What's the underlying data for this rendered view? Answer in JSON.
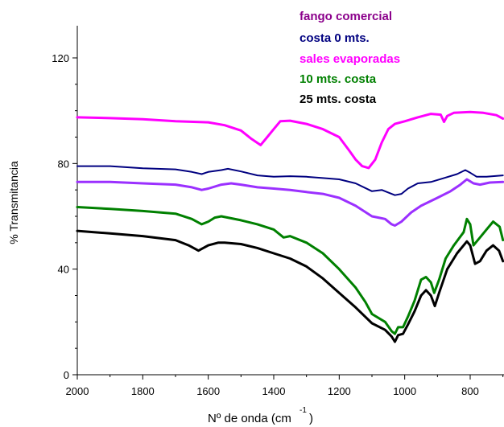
{
  "chart_data": {
    "type": "line",
    "title": "",
    "xlabel": "Nº de onda (cm",
    "xlabel_superscript": "-1",
    "xlabel_close": ")",
    "ylabel": "% Transmitancia",
    "xlim": [
      2000,
      700
    ],
    "x_reversed": true,
    "ylim": [
      0,
      120
    ],
    "x_ticks": [
      2000,
      1800,
      1600,
      1400,
      1200,
      1000,
      800
    ],
    "x_tick_labels": [
      "2000",
      "1800",
      "1600",
      "1400",
      "1200",
      "1000",
      "800"
    ],
    "y_ticks": [
      0,
      40,
      80,
      120
    ],
    "y_tick_labels": [
      "0",
      "40",
      "80",
      "120"
    ],
    "grid": false,
    "legend_position": "top-center",
    "legend": [
      {
        "label": "fango comercial",
        "color": "#8B008B"
      },
      {
        "label": "costa 0 mts.",
        "color": "#000080"
      },
      {
        "label": "sales evaporadas",
        "color": "#FF00FF"
      },
      {
        "label": "10 mts. costa",
        "color": "#008000"
      },
      {
        "label": "25 mts. costa",
        "color": "#000000"
      }
    ],
    "series": [
      {
        "name": "sales evaporadas",
        "color": "#FF00FF",
        "points": [
          [
            2000,
            97.5
          ],
          [
            1900,
            97.2
          ],
          [
            1800,
            96.8
          ],
          [
            1700,
            96.0
          ],
          [
            1600,
            95.6
          ],
          [
            1550,
            94.5
          ],
          [
            1500,
            92.5
          ],
          [
            1470,
            89.5
          ],
          [
            1440,
            87.0
          ],
          [
            1420,
            90.0
          ],
          [
            1400,
            93.0
          ],
          [
            1380,
            96.0
          ],
          [
            1350,
            96.2
          ],
          [
            1300,
            95.0
          ],
          [
            1250,
            93.0
          ],
          [
            1200,
            90.0
          ],
          [
            1170,
            85.0
          ],
          [
            1150,
            81.5
          ],
          [
            1130,
            79.0
          ],
          [
            1110,
            78.3
          ],
          [
            1090,
            81.5
          ],
          [
            1070,
            88.0
          ],
          [
            1050,
            93.0
          ],
          [
            1030,
            95.0
          ],
          [
            1000,
            96.0
          ],
          [
            960,
            97.5
          ],
          [
            920,
            98.8
          ],
          [
            890,
            98.5
          ],
          [
            880,
            95.8
          ],
          [
            870,
            98.0
          ],
          [
            850,
            99.2
          ],
          [
            800,
            99.5
          ],
          [
            760,
            99.2
          ],
          [
            720,
            98.3
          ],
          [
            700,
            97.0
          ]
        ]
      },
      {
        "name": "costa 0 mts.",
        "color": "#000080",
        "points": [
          [
            2000,
            79.0
          ],
          [
            1900,
            79.0
          ],
          [
            1800,
            78.2
          ],
          [
            1700,
            77.8
          ],
          [
            1650,
            76.8
          ],
          [
            1620,
            76.0
          ],
          [
            1600,
            76.8
          ],
          [
            1560,
            77.5
          ],
          [
            1540,
            78.0
          ],
          [
            1500,
            77.0
          ],
          [
            1450,
            75.5
          ],
          [
            1400,
            75.0
          ],
          [
            1350,
            75.2
          ],
          [
            1300,
            75.0
          ],
          [
            1250,
            74.5
          ],
          [
            1200,
            74.0
          ],
          [
            1150,
            72.5
          ],
          [
            1100,
            69.5
          ],
          [
            1070,
            70.0
          ],
          [
            1050,
            69.0
          ],
          [
            1030,
            68.0
          ],
          [
            1010,
            68.5
          ],
          [
            990,
            70.5
          ],
          [
            960,
            72.5
          ],
          [
            920,
            73.0
          ],
          [
            880,
            74.5
          ],
          [
            840,
            76.0
          ],
          [
            815,
            77.5
          ],
          [
            800,
            76.5
          ],
          [
            780,
            75.0
          ],
          [
            750,
            75.0
          ],
          [
            700,
            75.5
          ]
        ]
      },
      {
        "name": "fango comercial",
        "color": "#8B008B",
        "lineColor": "#9B30FF",
        "points": [
          [
            2000,
            73.0
          ],
          [
            1900,
            73.0
          ],
          [
            1800,
            72.5
          ],
          [
            1700,
            72.0
          ],
          [
            1650,
            71.0
          ],
          [
            1620,
            70.0
          ],
          [
            1600,
            70.5
          ],
          [
            1560,
            72.0
          ],
          [
            1530,
            72.5
          ],
          [
            1500,
            72.0
          ],
          [
            1450,
            71.0
          ],
          [
            1400,
            70.5
          ],
          [
            1350,
            70.0
          ],
          [
            1300,
            69.2
          ],
          [
            1250,
            68.5
          ],
          [
            1200,
            67.0
          ],
          [
            1150,
            64.0
          ],
          [
            1100,
            60.0
          ],
          [
            1080,
            59.5
          ],
          [
            1060,
            59.0
          ],
          [
            1040,
            57.0
          ],
          [
            1030,
            56.5
          ],
          [
            1010,
            58.0
          ],
          [
            980,
            61.5
          ],
          [
            950,
            64.0
          ],
          [
            900,
            67.0
          ],
          [
            860,
            69.5
          ],
          [
            830,
            72.0
          ],
          [
            810,
            74.0
          ],
          [
            790,
            72.5
          ],
          [
            770,
            72.0
          ],
          [
            740,
            72.8
          ],
          [
            700,
            73.0
          ]
        ]
      },
      {
        "name": "10 mts. costa",
        "color": "#008000",
        "points": [
          [
            2000,
            63.5
          ],
          [
            1900,
            62.8
          ],
          [
            1800,
            62.0
          ],
          [
            1700,
            61.0
          ],
          [
            1650,
            59.0
          ],
          [
            1620,
            57.0
          ],
          [
            1600,
            58.0
          ],
          [
            1580,
            59.5
          ],
          [
            1560,
            60.0
          ],
          [
            1500,
            58.5
          ],
          [
            1450,
            57.0
          ],
          [
            1400,
            55.0
          ],
          [
            1370,
            52.0
          ],
          [
            1350,
            52.5
          ],
          [
            1300,
            50.0
          ],
          [
            1250,
            46.0
          ],
          [
            1200,
            40.0
          ],
          [
            1150,
            33.0
          ],
          [
            1120,
            27.5
          ],
          [
            1100,
            23.0
          ],
          [
            1060,
            20.0
          ],
          [
            1040,
            16.5
          ],
          [
            1030,
            15.5
          ],
          [
            1020,
            18.0
          ],
          [
            1005,
            18.0
          ],
          [
            990,
            22.0
          ],
          [
            970,
            28.0
          ],
          [
            950,
            36.0
          ],
          [
            935,
            37.0
          ],
          [
            920,
            35.0
          ],
          [
            910,
            31.0
          ],
          [
            895,
            36.0
          ],
          [
            875,
            44.0
          ],
          [
            850,
            49.0
          ],
          [
            820,
            54.0
          ],
          [
            810,
            59.0
          ],
          [
            800,
            57.0
          ],
          [
            790,
            49.0
          ],
          [
            770,
            52.0
          ],
          [
            750,
            55.0
          ],
          [
            730,
            58.0
          ],
          [
            710,
            56.0
          ],
          [
            700,
            51.0
          ]
        ]
      },
      {
        "name": "25 mts. costa",
        "color": "#000000",
        "points": [
          [
            2000,
            54.5
          ],
          [
            1900,
            53.5
          ],
          [
            1800,
            52.5
          ],
          [
            1700,
            51.0
          ],
          [
            1660,
            49.0
          ],
          [
            1630,
            47.0
          ],
          [
            1600,
            49.0
          ],
          [
            1570,
            50.0
          ],
          [
            1550,
            50.0
          ],
          [
            1500,
            49.5
          ],
          [
            1450,
            48.0
          ],
          [
            1400,
            46.0
          ],
          [
            1350,
            44.0
          ],
          [
            1300,
            41.0
          ],
          [
            1250,
            36.5
          ],
          [
            1200,
            31.0
          ],
          [
            1150,
            25.5
          ],
          [
            1100,
            19.5
          ],
          [
            1060,
            17.0
          ],
          [
            1040,
            14.5
          ],
          [
            1030,
            12.5
          ],
          [
            1020,
            15.0
          ],
          [
            1005,
            15.5
          ],
          [
            990,
            19.0
          ],
          [
            970,
            24.0
          ],
          [
            950,
            30.0
          ],
          [
            935,
            32.0
          ],
          [
            920,
            30.0
          ],
          [
            908,
            26.0
          ],
          [
            895,
            31.0
          ],
          [
            870,
            40.0
          ],
          [
            840,
            46.0
          ],
          [
            810,
            50.5
          ],
          [
            800,
            49.0
          ],
          [
            785,
            42.0
          ],
          [
            770,
            43.0
          ],
          [
            750,
            47.0
          ],
          [
            730,
            49.0
          ],
          [
            712,
            47.0
          ],
          [
            700,
            43.0
          ]
        ]
      }
    ]
  }
}
